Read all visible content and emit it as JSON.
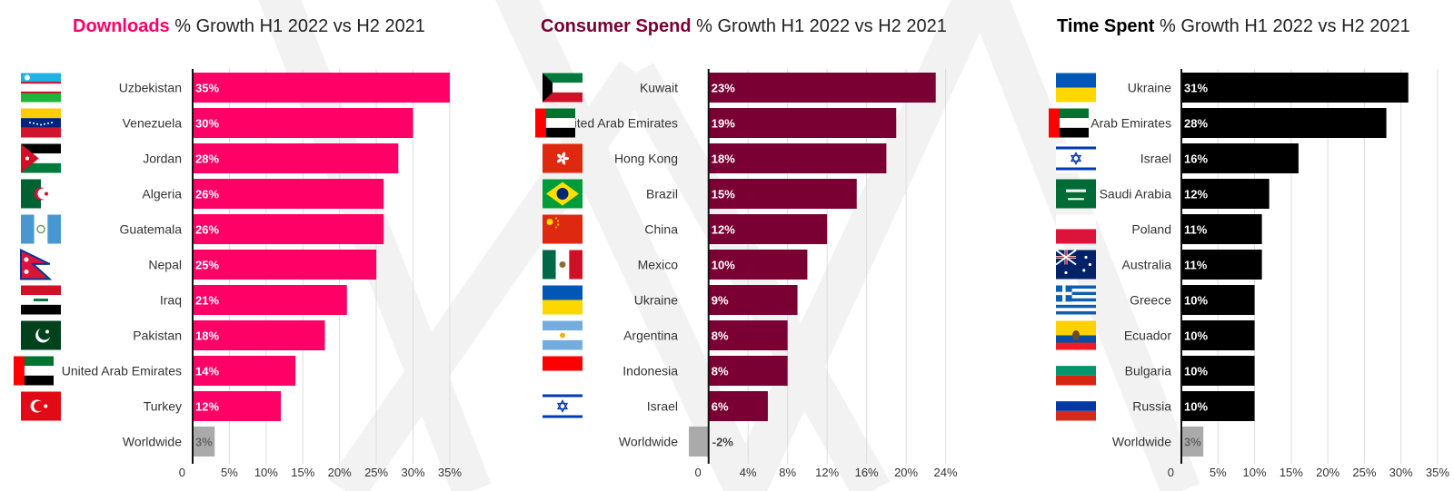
{
  "panels": [
    {
      "title_bold": "Downloads",
      "title_rest": " % Growth H1 2022 vs H2 2021",
      "title_color": "#ff0066",
      "bar_color": "#ff0066",
      "worldwide_color": "#aaaaaa",
      "chart_data": {
        "type": "bar",
        "orientation": "horizontal",
        "categories": [
          "Uzbekistan",
          "Venezuela",
          "Jordan",
          "Algeria",
          "Guatemala",
          "Nepal",
          "Iraq",
          "Pakistan",
          "United Arab Emirates",
          "Turkey",
          "Worldwide"
        ],
        "values": [
          35,
          30,
          28,
          26,
          26,
          25,
          21,
          18,
          14,
          12,
          3
        ],
        "data_labels": [
          "35%",
          "30%",
          "28%",
          "26%",
          "26%",
          "25%",
          "21%",
          "18%",
          "14%",
          "12%",
          "3%"
        ],
        "xlim": [
          0,
          36
        ],
        "ticks": [
          0,
          5,
          10,
          15,
          20,
          25,
          30,
          35
        ],
        "tick_labels": [
          "0",
          "5%",
          "10%",
          "15%",
          "20%",
          "25%",
          "30%",
          "35%"
        ],
        "grid": true
      },
      "flags": [
        "uzbekistan-flag-icon",
        "venezuela-flag-icon",
        "jordan-flag-icon",
        "algeria-flag-icon",
        "guatemala-flag-icon",
        "nepal-flag-icon",
        "iraq-flag-icon",
        "pakistan-flag-icon",
        "uae-flag-icon",
        "turkey-flag-icon",
        ""
      ]
    },
    {
      "title_bold": "Consumer Spend",
      "title_rest": " % Growth H1 2022 vs H2 2021",
      "title_color": "#7a0034",
      "bar_color": "#7a0034",
      "worldwide_color": "#aaaaaa",
      "chart_data": {
        "type": "bar",
        "orientation": "horizontal",
        "categories": [
          "Kuwait",
          "United Arab Emirates",
          "Hong Kong",
          "Brazil",
          "China",
          "Mexico",
          "Ukraine",
          "Argentina",
          "Indonesia",
          "Israel",
          "Worldwide"
        ],
        "values": [
          23,
          19,
          18,
          15,
          12,
          10,
          9,
          8,
          8,
          6,
          -2
        ],
        "data_labels": [
          "23%",
          "19%",
          "18%",
          "15%",
          "12%",
          "10%",
          "9%",
          "8%",
          "8%",
          "6%",
          "-2%"
        ],
        "xlim": [
          -2,
          24.5
        ],
        "ticks": [
          0,
          4,
          8,
          12,
          16,
          20,
          24
        ],
        "tick_labels": [
          "0",
          "4%",
          "8%",
          "12%",
          "16%",
          "20%",
          "24%"
        ],
        "grid": true
      },
      "flags": [
        "kuwait-flag-icon",
        "uae-flag-icon",
        "hong-kong-flag-icon",
        "brazil-flag-icon",
        "china-flag-icon",
        "mexico-flag-icon",
        "ukraine-flag-icon",
        "argentina-flag-icon",
        "indonesia-flag-icon",
        "israel-flag-icon",
        ""
      ]
    },
    {
      "title_bold": "Time Spent",
      "title_rest": " % Growth H1 2022 vs H2 2021",
      "title_color": "#000000",
      "bar_color": "#000000",
      "worldwide_color": "#aaaaaa",
      "chart_data": {
        "type": "bar",
        "orientation": "horizontal",
        "categories": [
          "Ukraine",
          "United Arab Emirates",
          "Israel",
          "Saudi Arabia",
          "Poland",
          "Australia",
          "Greece",
          "Ecuador",
          "Bulgaria",
          "Russia",
          "Worldwide"
        ],
        "values": [
          31,
          28,
          16,
          12,
          11,
          11,
          10,
          10,
          10,
          10,
          3
        ],
        "data_labels": [
          "31%",
          "28%",
          "16%",
          "12%",
          "11%",
          "11%",
          "10%",
          "10%",
          "10%",
          "10%",
          "3%"
        ],
        "xlim": [
          0,
          36
        ],
        "ticks": [
          0,
          5,
          10,
          15,
          20,
          25,
          30,
          35
        ],
        "tick_labels": [
          "0",
          "5%",
          "10%",
          "15%",
          "20%",
          "25%",
          "30%",
          "35%"
        ],
        "grid": true
      },
      "flags": [
        "ukraine-flag-icon",
        "uae-flag-icon",
        "israel-flag-icon",
        "saudi-arabia-flag-icon",
        "poland-flag-icon",
        "australia-flag-icon",
        "greece-flag-icon",
        "ecuador-flag-icon",
        "bulgaria-flag-icon",
        "russia-flag-icon",
        ""
      ]
    }
  ]
}
